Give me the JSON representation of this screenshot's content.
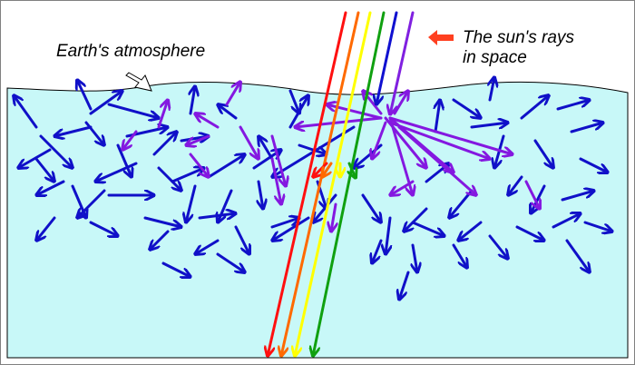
{
  "labels": {
    "atmosphere": "Earth's atmosphere",
    "sun_rays_line1": "The sun's rays",
    "sun_rays_line2": "in space"
  },
  "colors": {
    "atmosphere_fill": "#c8f8f8",
    "atmosphere_edge": "#000000",
    "scattered_blue": "#1010c8",
    "scattered_violet": "#8418e0",
    "ray_red": "#ff1010",
    "ray_orange": "#ff6a00",
    "ray_yellow": "#ffff00",
    "ray_green": "#10a010",
    "ray_blue": "#1010d0",
    "ray_violet": "#8020e0",
    "label_arrow": "#ff4020"
  },
  "icons": {
    "label_pointer": "hollow-arrow-icon",
    "sun_label_arrow": "left-arrow-icon"
  }
}
